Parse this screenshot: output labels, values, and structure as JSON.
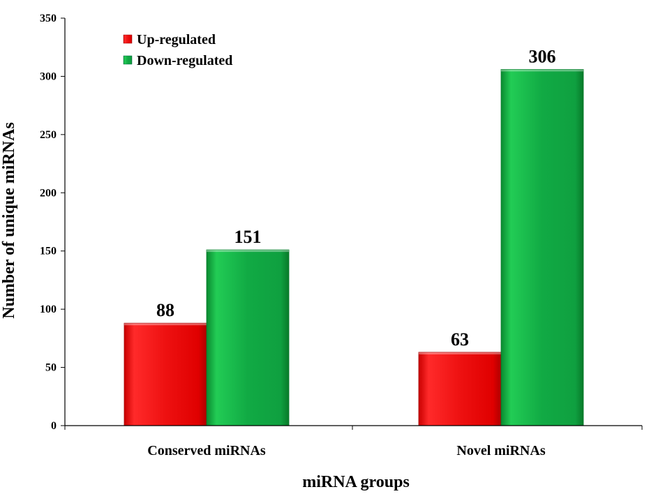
{
  "chart_data": {
    "type": "bar",
    "categories": [
      "Conserved miRNAs",
      "Novel miRNAs"
    ],
    "series": [
      {
        "name": "Up-regulated",
        "values": [
          88,
          63
        ],
        "color": "#ee1111"
      },
      {
        "name": "Down-regulated",
        "values": [
          151,
          306
        ],
        "color": "#11aa44"
      }
    ],
    "xlabel": "miRNA groups",
    "ylabel": "Number of unique miRNAs",
    "ylim": [
      0,
      350
    ],
    "yticks": [
      0,
      50,
      100,
      150,
      200,
      250,
      300,
      350
    ],
    "grid": false,
    "legend_position": "top-left"
  }
}
